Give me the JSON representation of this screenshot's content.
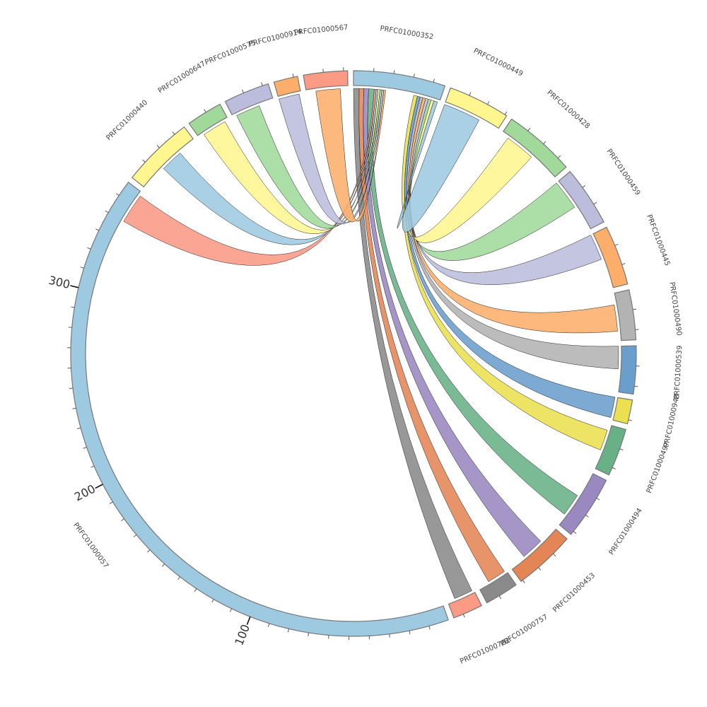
{
  "chart_data": {
    "type": "chord",
    "title": "",
    "segments": [
      {
        "name": "PRFC01000352",
        "value": 46,
        "color": "#9ecae1"
      },
      {
        "name": "PRFC01000449",
        "value": 31,
        "color": "#fff68f"
      },
      {
        "name": "PRFC01000428",
        "value": 36,
        "color": "#a1d99b"
      },
      {
        "name": "PRFC01000459",
        "value": 30,
        "color": "#bcbddc"
      },
      {
        "name": "PRFC01000445",
        "value": 30,
        "color": "#fdae6b"
      },
      {
        "name": "PRFC01000490",
        "value": 25,
        "color": "#b3b3b3"
      },
      {
        "name": "PRFC01000539",
        "value": 24,
        "color": "#6a9ecd"
      },
      {
        "name": "PRFC01000948",
        "value": 12,
        "color": "#ebe050"
      },
      {
        "name": "PRFC01000497",
        "value": 24,
        "color": "#68b085"
      },
      {
        "name": "PRFC01000494",
        "value": 32,
        "color": "#9a88c0"
      },
      {
        "name": "PRFC01000453",
        "value": 31,
        "color": "#e48555"
      },
      {
        "name": "PRFC01000757",
        "value": 17,
        "color": "#8a8a8a"
      },
      {
        "name": "PRFC01000782",
        "value": 15,
        "color": "#fb9a85"
      },
      {
        "name": "PRFC01000057",
        "value": 358,
        "color": "#9ecae1"
      },
      {
        "name": "PRFC01000440",
        "value": 36,
        "color": "#fff68f"
      },
      {
        "name": "PRFC01000647",
        "value": 18,
        "color": "#a1d99b"
      },
      {
        "name": "PRFC01000575",
        "value": 23,
        "color": "#bcbddc"
      },
      {
        "name": "PRFC01000914",
        "value": 12,
        "color": "#fdae6b"
      },
      {
        "name": "PRFC01000567",
        "value": 22,
        "color": "#fb9a85"
      }
    ],
    "axis_labels": [
      {
        "segment": "PRFC01000057",
        "value": 100,
        "text": "100"
      },
      {
        "segment": "PRFC01000057",
        "value": 200,
        "text": "200"
      },
      {
        "segment": "PRFC01000057",
        "value": 300,
        "text": "300"
      }
    ],
    "tick_interval": 10,
    "chords": [
      {
        "source": "PRFC01000352",
        "s": [
          0,
          3
        ],
        "target": "PRFC01000782",
        "t": [
          1,
          11
        ],
        "color": "#8a8a8a"
      },
      {
        "source": "PRFC01000352",
        "s": [
          3,
          5.5
        ],
        "target": "PRFC01000757",
        "t": [
          1,
          11
        ],
        "color": "#e48555"
      },
      {
        "source": "PRFC01000352",
        "s": [
          5.5,
          8
        ],
        "target": "PRFC01000453",
        "t": [
          10,
          22
        ],
        "color": "#9a88c0"
      },
      {
        "source": "PRFC01000352",
        "s": [
          8,
          11
        ],
        "target": "PRFC01000494",
        "t": [
          14,
          26
        ],
        "color": "#68b085"
      },
      {
        "source": "PRFC01000352",
        "s": [
          11,
          12
        ],
        "target": "PRFC01000057",
        "t": [
          340,
          356
        ],
        "color": "#fb9a85"
      },
      {
        "source": "PRFC01000352",
        "s": [
          12,
          13
        ],
        "target": "PRFC01000440",
        "t": [
          14,
          26
        ],
        "color": "#9ecae1"
      },
      {
        "source": "PRFC01000352",
        "s": [
          13,
          14
        ],
        "target": "PRFC01000647",
        "t": [
          3,
          16
        ],
        "color": "#fff68f"
      },
      {
        "source": "PRFC01000352",
        "s": [
          14,
          15
        ],
        "target": "PRFC01000575",
        "t": [
          2,
          15
        ],
        "color": "#a1d99b"
      },
      {
        "source": "PRFC01000352",
        "s": [
          15,
          16
        ],
        "target": "PRFC01000914",
        "t": [
          0,
          11
        ],
        "color": "#bcbddc"
      },
      {
        "source": "PRFC01000352",
        "s": [
          16,
          17
        ],
        "target": "PRFC01000567",
        "t": [
          5,
          18
        ],
        "color": "#fdae6b"
      },
      {
        "source": "PRFC01000352",
        "s": [
          32,
          34
        ],
        "target": "PRFC01000497",
        "t": [
          3,
          14
        ],
        "color": "#ebe050"
      },
      {
        "source": "PRFC01000352",
        "s": [
          34,
          35.5
        ],
        "target": "PRFC01000948",
        "t": [
          0,
          11
        ],
        "color": "#6a9ecd"
      },
      {
        "source": "PRFC01000352",
        "s": [
          35.5,
          37
        ],
        "target": "PRFC01000539",
        "t": [
          0,
          12
        ],
        "color": "#b3b3b3"
      },
      {
        "source": "PRFC01000352",
        "s": [
          37,
          38.5
        ],
        "target": "PRFC01000490",
        "t": [
          6,
          20
        ],
        "color": "#fdae6b"
      },
      {
        "source": "PRFC01000352",
        "s": [
          38.5,
          40
        ],
        "target": "PRFC01000445",
        "t": [
          0,
          14
        ],
        "color": "#bcbddc"
      },
      {
        "source": "PRFC01000352",
        "s": [
          40,
          41.5
        ],
        "target": "PRFC01000459",
        "t": [
          0,
          16
        ],
        "color": "#a1d99b"
      },
      {
        "source": "PRFC01000352",
        "s": [
          41.5,
          43
        ],
        "target": "PRFC01000428",
        "t": [
          4,
          20
        ],
        "color": "#fff68f"
      },
      {
        "source": "PRFC01000352",
        "s": [
          43,
          45
        ],
        "target": "PRFC01000449",
        "t": [
          0,
          20
        ],
        "color": "#9ecae1"
      }
    ]
  }
}
